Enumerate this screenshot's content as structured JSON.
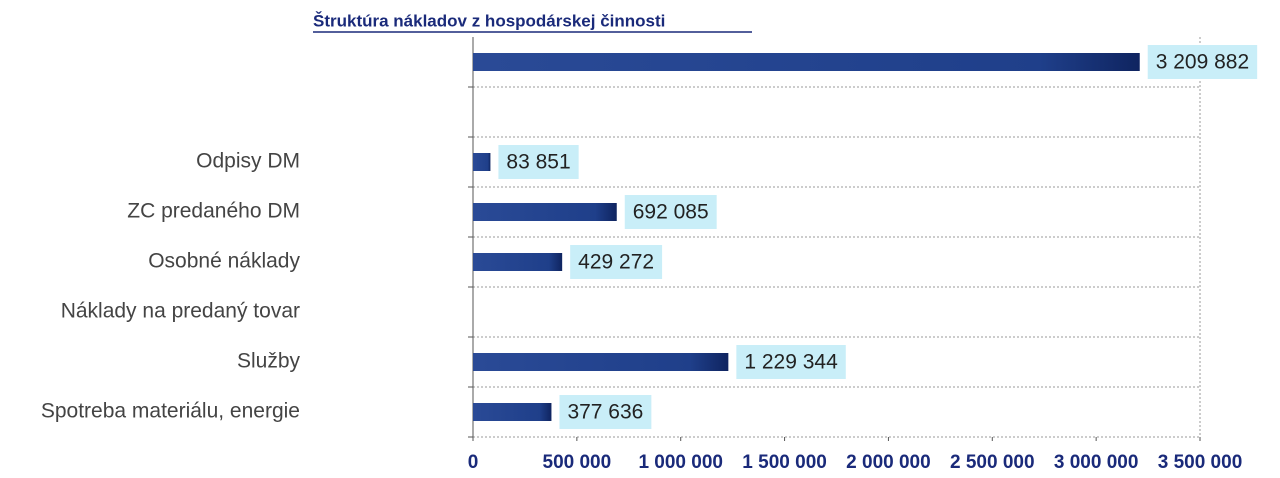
{
  "chart_data": {
    "type": "bar",
    "orientation": "horizontal",
    "title": "Štruktúra nákladov z hospodárskej činnosti",
    "categories": [
      null,
      null,
      "Odpisy DM",
      "ZC predaného DM",
      "Osobné náklady",
      "Náklady na predaný tovar",
      "Služby",
      "Spotreba materiálu, energie"
    ],
    "values": [
      3209882,
      null,
      83851,
      692085,
      429272,
      null,
      1229344,
      377636
    ],
    "value_labels": [
      "3 209 882",
      null,
      "83 851",
      "692 085",
      "429 272",
      null,
      "1 229 344",
      "377 636"
    ],
    "color": "#1f3f8a",
    "xlim": [
      0,
      3500000
    ],
    "xticks": [
      0,
      {
        "value": 500000,
        "label": "500 000"
      },
      {
        "value": 1000000,
        "label": "1 000 000"
      },
      {
        "value": 1500000,
        "label": "1 500 000"
      },
      {
        "value": 2000000,
        "label": "2 000 000"
      },
      {
        "value": 2500000,
        "label": "2 500 000"
      },
      {
        "value": 3000000,
        "label": "3 000 000"
      },
      {
        "value": 3500000,
        "label": "3 500 000"
      }
    ],
    "grid": true
  }
}
